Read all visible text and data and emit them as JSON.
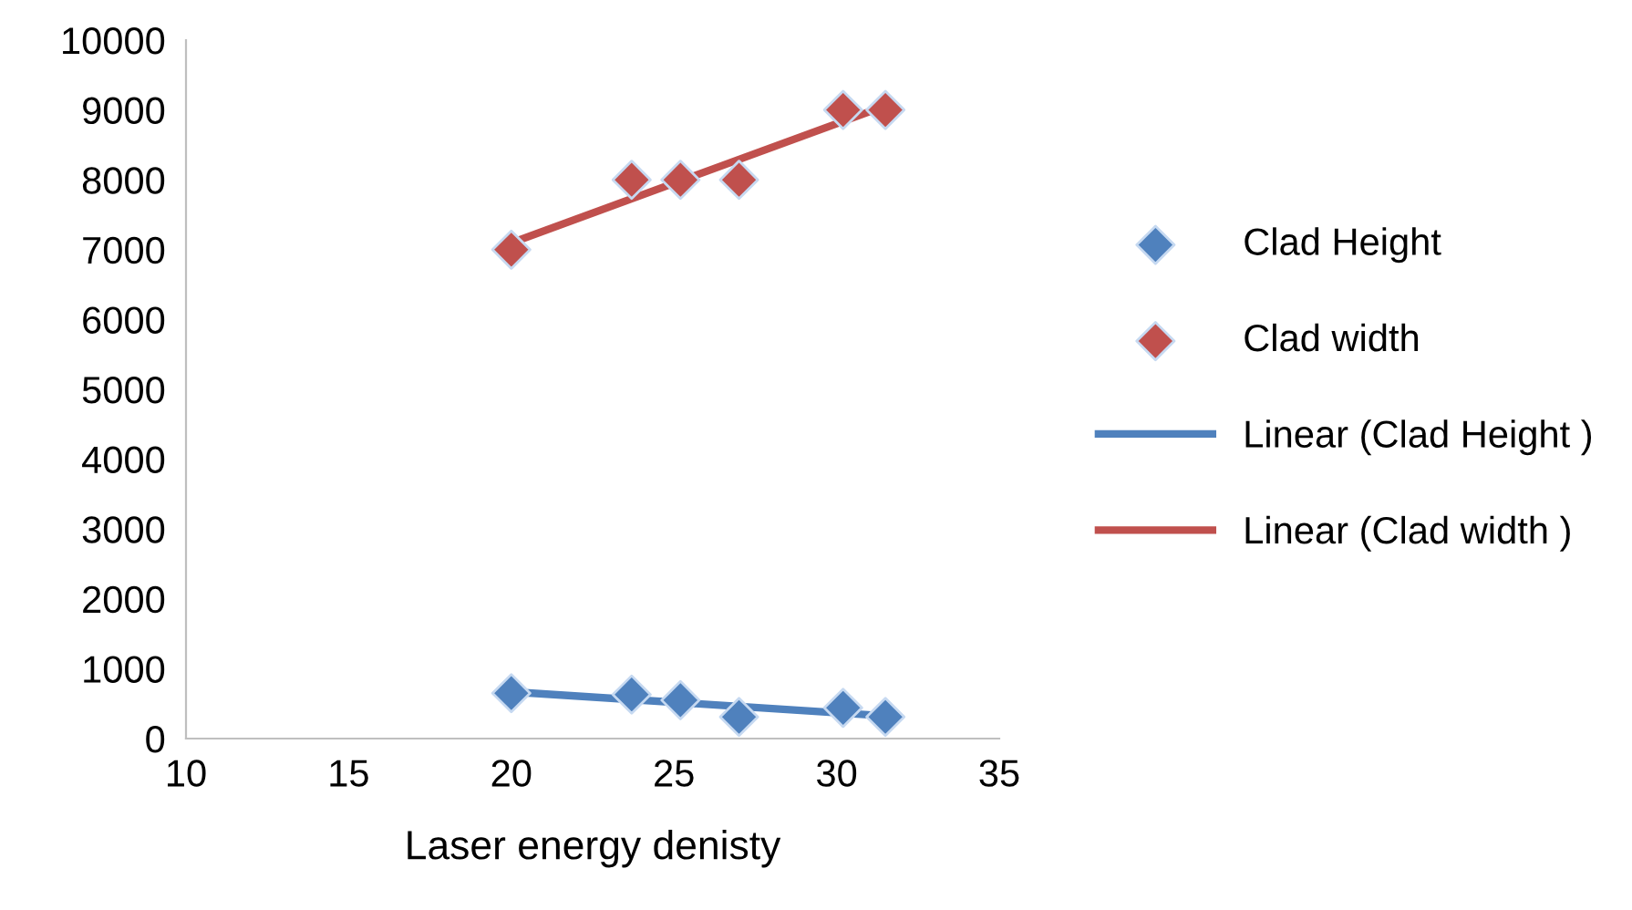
{
  "chart_data": {
    "type": "scatter",
    "xlabel": "Laser energy denisty",
    "xlim": [
      10,
      35
    ],
    "xticks": [
      10,
      15,
      20,
      25,
      30,
      35
    ],
    "ylim": [
      0,
      10000
    ],
    "yticks": [
      0,
      1000,
      2000,
      3000,
      4000,
      5000,
      6000,
      7000,
      8000,
      9000,
      10000
    ],
    "grid": false,
    "legend": "right",
    "marker": "diamond",
    "series": [
      {
        "name": "Clad Height",
        "color": "#4f81bd",
        "x": [
          20,
          23.7,
          25.2,
          27,
          30.2,
          31.5
        ],
        "values": [
          650,
          630,
          550,
          310,
          440,
          310
        ]
      },
      {
        "name": "Clad width",
        "color": "#c0504d",
        "x": [
          20,
          23.7,
          25.2,
          27,
          30.2,
          31.5
        ],
        "values": [
          7000,
          8000,
          8000,
          8000,
          9000,
          9000
        ]
      },
      {
        "name": "Linear (Clad Height )",
        "type": "line",
        "color": "#4f81bd",
        "line_style": "solid",
        "marker": "none",
        "x": [
          20,
          31.5
        ],
        "values": [
          669,
          326
        ]
      },
      {
        "name": "Linear (Clad width )",
        "type": "line",
        "color": "#c0504d",
        "line_style": "solid",
        "marker": "none",
        "x": [
          20,
          31.5
        ],
        "values": [
          7097,
          9060
        ]
      }
    ]
  }
}
